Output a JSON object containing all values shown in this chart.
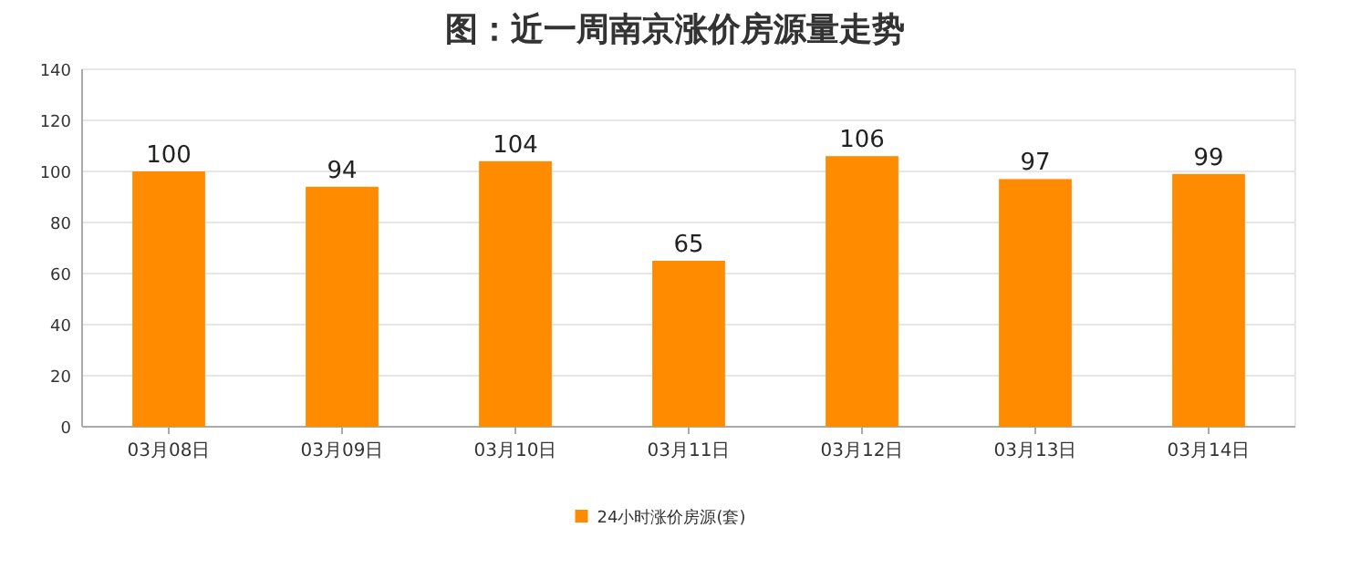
{
  "chart_data": {
    "type": "bar",
    "title": "图：近一周南京涨价房源量走势",
    "categories": [
      "03月08日",
      "03月09日",
      "03月10日",
      "03月11日",
      "03月12日",
      "03月13日",
      "03月14日"
    ],
    "series": [
      {
        "name": "24小时涨价房源(套)",
        "color": "#ff8c00",
        "values": [
          100,
          94,
          104,
          65,
          106,
          97,
          99
        ]
      }
    ],
    "ylim": [
      0,
      140
    ],
    "yticks": [
      0,
      20,
      40,
      60,
      80,
      100,
      120,
      140
    ],
    "grid": "y",
    "legend": "bottom",
    "data_labels": true
  }
}
